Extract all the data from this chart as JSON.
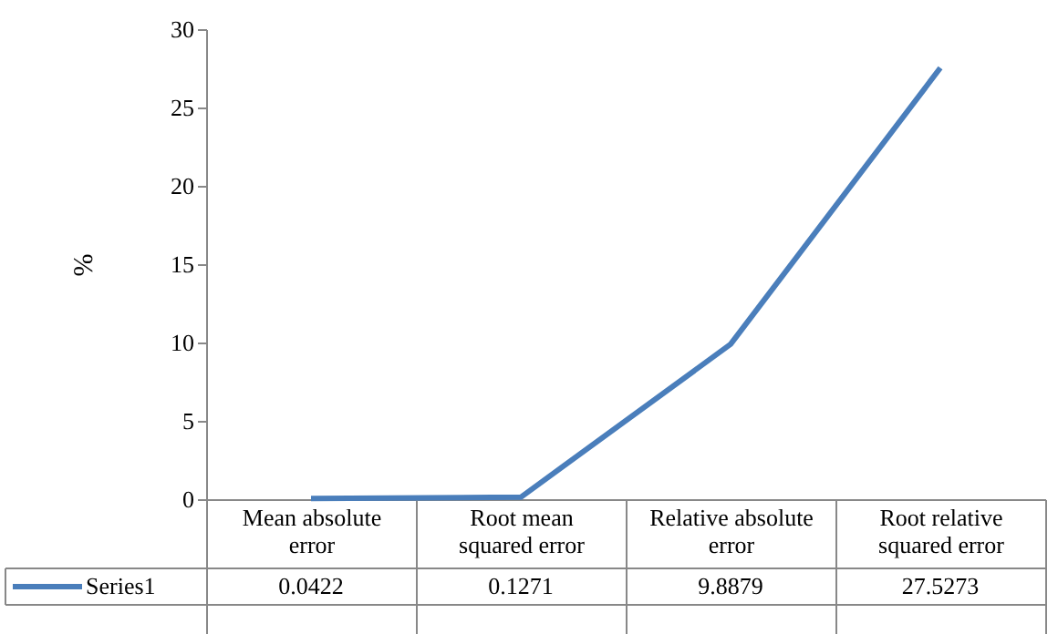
{
  "chart_data": {
    "type": "line",
    "ylabel": "%",
    "categories": [
      "Mean absolute error",
      "Root mean squared error",
      "Relative absolute error",
      "Root relative squared error"
    ],
    "series": [
      {
        "name": "Series1",
        "color": "#4a7ebb",
        "values": [
          0.0422,
          0.1271,
          9.8879,
          27.5273
        ]
      }
    ],
    "ylim": [
      0,
      30
    ],
    "yticks": [
      0,
      5,
      10,
      15,
      20,
      25,
      30
    ],
    "grid": false,
    "legend": "bottom",
    "data_labels": true,
    "marker": "none",
    "line_style": "solid"
  }
}
